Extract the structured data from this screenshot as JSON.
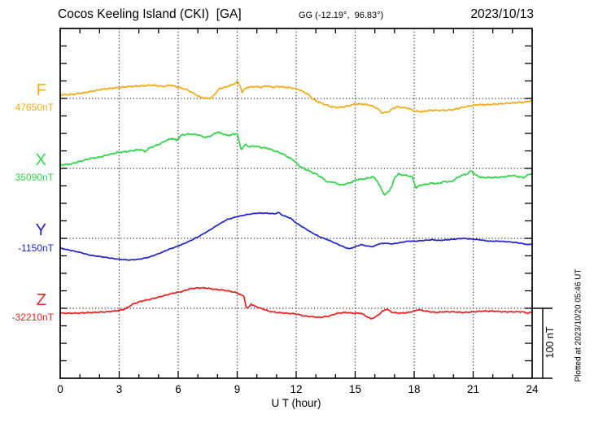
{
  "header": {
    "title": "Cocos Keeling Island (CKI)  [GA]",
    "coords": "GG (-12.19°,  96.83°)",
    "date": "2023/10/13"
  },
  "footer_note": "Plotted at 2023/10/20 05:46 UT",
  "scale_bar": {
    "label": "100 nT",
    "span_nT": 100
  },
  "chart_data": {
    "type": "line",
    "title": "Cocos Keeling Island (CKI) [GA] magnetogram 2023/10/13",
    "xlabel": "U T (hour)",
    "y_unit": "nT",
    "x_range": [
      0,
      24
    ],
    "x_ticks": [
      0,
      3,
      6,
      9,
      12,
      15,
      18,
      21,
      24
    ],
    "x_minor_tick_hours": 1,
    "nT_per_y_division": 25,
    "grid": "dotted vertical lines every 3 h; dotted horizontal reference line per channel",
    "legend_position": "left margin, one colored letter + reference value per channel",
    "series": [
      {
        "label": "F",
        "ref_label": "47650nT",
        "ref_value": 47650,
        "color": "#F0AC1C",
        "points": [
          [
            0,
            47655
          ],
          [
            0.7,
            47656
          ],
          [
            1.4,
            47659
          ],
          [
            2.1,
            47663
          ],
          [
            2.8,
            47665
          ],
          [
            3.5,
            47667
          ],
          [
            4.2,
            47668
          ],
          [
            4.7,
            47669
          ],
          [
            5.2,
            47667
          ],
          [
            5.6,
            47669
          ],
          [
            6,
            47666
          ],
          [
            6.4,
            47663
          ],
          [
            6.8,
            47657
          ],
          [
            7.1,
            47652
          ],
          [
            7.4,
            47650
          ],
          [
            7.7,
            47651
          ],
          [
            8.1,
            47664
          ],
          [
            8.5,
            47667
          ],
          [
            8.8,
            47670
          ],
          [
            9,
            47674
          ],
          [
            9.15,
            47668
          ],
          [
            9.25,
            47659
          ],
          [
            9.45,
            47665
          ],
          [
            9.6,
            47666
          ],
          [
            9.9,
            47667
          ],
          [
            10.2,
            47666
          ],
          [
            10.5,
            47668
          ],
          [
            10.8,
            47666
          ],
          [
            11.1,
            47667
          ],
          [
            11.4,
            47666
          ],
          [
            11.8,
            47665
          ],
          [
            12.1,
            47663
          ],
          [
            12.4,
            47659
          ],
          [
            12.6,
            47656
          ],
          [
            12.9,
            47648
          ],
          [
            13.3,
            47643
          ],
          [
            13.8,
            47638
          ],
          [
            14.2,
            47637
          ],
          [
            14.6,
            47639
          ],
          [
            15,
            47642
          ],
          [
            15.4,
            47642
          ],
          [
            15.8,
            47640
          ],
          [
            16.1,
            47636
          ],
          [
            16.4,
            47629
          ],
          [
            16.7,
            47631
          ],
          [
            16.9,
            47635
          ],
          [
            17.1,
            47638
          ],
          [
            17.4,
            47637
          ],
          [
            17.7,
            47636
          ],
          [
            18,
            47632
          ],
          [
            18.4,
            47631
          ],
          [
            18.8,
            47633
          ],
          [
            19.2,
            47633
          ],
          [
            19.6,
            47633
          ],
          [
            20,
            47634
          ],
          [
            20.4,
            47637
          ],
          [
            20.8,
            47639
          ],
          [
            21.2,
            47641
          ],
          [
            21.7,
            47641
          ],
          [
            22.2,
            47642
          ],
          [
            22.7,
            47643
          ],
          [
            23.2,
            47644
          ],
          [
            23.7,
            47645
          ],
          [
            24,
            47647
          ]
        ]
      },
      {
        "label": "X",
        "ref_label": "35090nT",
        "ref_value": 35090,
        "color": "#33D34D",
        "points": [
          [
            0,
            35095
          ],
          [
            0.5,
            35096
          ],
          [
            1,
            35100
          ],
          [
            1.5,
            35104
          ],
          [
            2,
            35106
          ],
          [
            2.5,
            35110
          ],
          [
            3,
            35113
          ],
          [
            3.4,
            35114
          ],
          [
            3.8,
            35116
          ],
          [
            4.1,
            35117
          ],
          [
            4.3,
            35114
          ],
          [
            4.6,
            35120
          ],
          [
            5,
            35124
          ],
          [
            5.4,
            35130
          ],
          [
            5.7,
            35133
          ],
          [
            5.9,
            35130
          ],
          [
            6.2,
            35138
          ],
          [
            6.6,
            35139
          ],
          [
            7,
            35138
          ],
          [
            7.4,
            35134
          ],
          [
            7.7,
            35137
          ],
          [
            8,
            35142
          ],
          [
            8.2,
            35140
          ],
          [
            8.5,
            35137
          ],
          [
            8.7,
            35138
          ],
          [
            9,
            35140
          ],
          [
            9.2,
            35117
          ],
          [
            9.4,
            35124
          ],
          [
            9.6,
            35121
          ],
          [
            9.9,
            35122
          ],
          [
            10.2,
            35120
          ],
          [
            10.5,
            35119
          ],
          [
            10.7,
            35117
          ],
          [
            11,
            35114
          ],
          [
            11.3,
            35111
          ],
          [
            11.6,
            35106
          ],
          [
            11.9,
            35101
          ],
          [
            12.1,
            35095
          ],
          [
            12.3,
            35091
          ],
          [
            12.6,
            35087
          ],
          [
            13,
            35082
          ],
          [
            13.4,
            35075
          ],
          [
            13.6,
            35070
          ],
          [
            13.8,
            35071
          ],
          [
            14,
            35069
          ],
          [
            14.3,
            35066
          ],
          [
            14.7,
            35069
          ],
          [
            15.1,
            35074
          ],
          [
            15.5,
            35075
          ],
          [
            15.9,
            35078
          ],
          [
            16.1,
            35073
          ],
          [
            16.3,
            35062
          ],
          [
            16.5,
            35052
          ],
          [
            16.7,
            35057
          ],
          [
            16.9,
            35066
          ],
          [
            17,
            35077
          ],
          [
            17.2,
            35082
          ],
          [
            17.3,
            35081
          ],
          [
            17.6,
            35080
          ],
          [
            17.9,
            35078
          ],
          [
            18,
            35069
          ],
          [
            18.1,
            35062
          ],
          [
            18.3,
            35066
          ],
          [
            18.6,
            35067
          ],
          [
            18.9,
            35069
          ],
          [
            19.2,
            35068
          ],
          [
            19.5,
            35071
          ],
          [
            19.9,
            35071
          ],
          [
            20.1,
            35075
          ],
          [
            20.4,
            35080
          ],
          [
            20.7,
            35082
          ],
          [
            20.9,
            35087
          ],
          [
            21.1,
            35081
          ],
          [
            21.4,
            35077
          ],
          [
            21.8,
            35077
          ],
          [
            22.2,
            35077
          ],
          [
            22.6,
            35078
          ],
          [
            23,
            35080
          ],
          [
            23.3,
            35078
          ],
          [
            23.6,
            35077
          ],
          [
            23.8,
            35081
          ],
          [
            24,
            35083
          ]
        ]
      },
      {
        "label": "Y",
        "ref_label": "-1150nT",
        "ref_value": -1150,
        "color": "#2222CC",
        "points": [
          [
            0,
            -1164
          ],
          [
            0.5,
            -1167
          ],
          [
            1,
            -1170
          ],
          [
            1.5,
            -1174
          ],
          [
            2,
            -1176
          ],
          [
            2.5,
            -1178
          ],
          [
            3,
            -1180
          ],
          [
            3.5,
            -1181
          ],
          [
            4,
            -1180
          ],
          [
            4.5,
            -1177
          ],
          [
            5,
            -1172
          ],
          [
            5.5,
            -1166
          ],
          [
            6,
            -1161
          ],
          [
            6.5,
            -1155
          ],
          [
            7,
            -1148
          ],
          [
            7.5,
            -1140
          ],
          [
            8,
            -1131
          ],
          [
            8.5,
            -1123
          ],
          [
            9,
            -1119
          ],
          [
            9.5,
            -1116
          ],
          [
            10,
            -1114
          ],
          [
            10.5,
            -1114
          ],
          [
            10.9,
            -1115
          ],
          [
            11.1,
            -1113
          ],
          [
            11.3,
            -1117
          ],
          [
            11.7,
            -1121
          ],
          [
            12,
            -1128
          ],
          [
            12.4,
            -1135
          ],
          [
            12.8,
            -1142
          ],
          [
            13.2,
            -1148
          ],
          [
            13.6,
            -1152
          ],
          [
            14,
            -1157
          ],
          [
            14.4,
            -1162
          ],
          [
            14.7,
            -1165
          ],
          [
            15,
            -1162
          ],
          [
            15.3,
            -1159
          ],
          [
            15.6,
            -1161
          ],
          [
            15.9,
            -1162
          ],
          [
            16.2,
            -1158
          ],
          [
            16.5,
            -1157
          ],
          [
            16.9,
            -1158
          ],
          [
            17.3,
            -1156
          ],
          [
            17.7,
            -1154
          ],
          [
            18.1,
            -1154
          ],
          [
            18.5,
            -1153
          ],
          [
            18.9,
            -1152
          ],
          [
            19.3,
            -1153
          ],
          [
            19.7,
            -1152
          ],
          [
            20.1,
            -1151
          ],
          [
            20.5,
            -1150
          ],
          [
            20.9,
            -1151
          ],
          [
            21.3,
            -1152
          ],
          [
            21.8,
            -1154
          ],
          [
            22.3,
            -1154
          ],
          [
            22.8,
            -1155
          ],
          [
            23.2,
            -1156
          ],
          [
            23.6,
            -1158
          ],
          [
            23.8,
            -1159
          ],
          [
            24,
            -1158
          ]
        ]
      },
      {
        "label": "Z",
        "ref_label": "-32210nT",
        "ref_value": -32210,
        "color": "#E62222",
        "points": [
          [
            0,
            -32217
          ],
          [
            0.8,
            -32217
          ],
          [
            1.6,
            -32216
          ],
          [
            2.4,
            -32215
          ],
          [
            3,
            -32213
          ],
          [
            3.3,
            -32211
          ],
          [
            3.7,
            -32204
          ],
          [
            4.1,
            -32200
          ],
          [
            4.6,
            -32197
          ],
          [
            5,
            -32194
          ],
          [
            5.4,
            -32191
          ],
          [
            5.8,
            -32188
          ],
          [
            6.2,
            -32186
          ],
          [
            6.6,
            -32182
          ],
          [
            7,
            -32181
          ],
          [
            7.4,
            -32181
          ],
          [
            7.9,
            -32183
          ],
          [
            8.3,
            -32184
          ],
          [
            8.7,
            -32186
          ],
          [
            9,
            -32188
          ],
          [
            9.2,
            -32191
          ],
          [
            9.35,
            -32193
          ],
          [
            9.45,
            -32208
          ],
          [
            9.55,
            -32210
          ],
          [
            9.7,
            -32204
          ],
          [
            9.9,
            -32207
          ],
          [
            10.2,
            -32210
          ],
          [
            10.6,
            -32214
          ],
          [
            11,
            -32216
          ],
          [
            11.5,
            -32217
          ],
          [
            12,
            -32218
          ],
          [
            12.4,
            -32221
          ],
          [
            12.8,
            -32222
          ],
          [
            13.2,
            -32223
          ],
          [
            13.7,
            -32221
          ],
          [
            14.1,
            -32217
          ],
          [
            14.5,
            -32216
          ],
          [
            14.9,
            -32217
          ],
          [
            15.3,
            -32217
          ],
          [
            15.6,
            -32222
          ],
          [
            15.8,
            -32225
          ],
          [
            16,
            -32223
          ],
          [
            16.2,
            -32219
          ],
          [
            16.4,
            -32214
          ],
          [
            16.6,
            -32211
          ],
          [
            16.9,
            -32216
          ],
          [
            17.3,
            -32217
          ],
          [
            17.7,
            -32216
          ],
          [
            18,
            -32214
          ],
          [
            18.2,
            -32212
          ],
          [
            18.6,
            -32214
          ],
          [
            19.1,
            -32216
          ],
          [
            19.5,
            -32215
          ],
          [
            20,
            -32215
          ],
          [
            20.5,
            -32216
          ],
          [
            21,
            -32215
          ],
          [
            21.5,
            -32214
          ],
          [
            22,
            -32214
          ],
          [
            22.5,
            -32215
          ],
          [
            23,
            -32215
          ],
          [
            23.5,
            -32215
          ],
          [
            23.8,
            -32217
          ],
          [
            24,
            -32215
          ]
        ]
      }
    ]
  }
}
